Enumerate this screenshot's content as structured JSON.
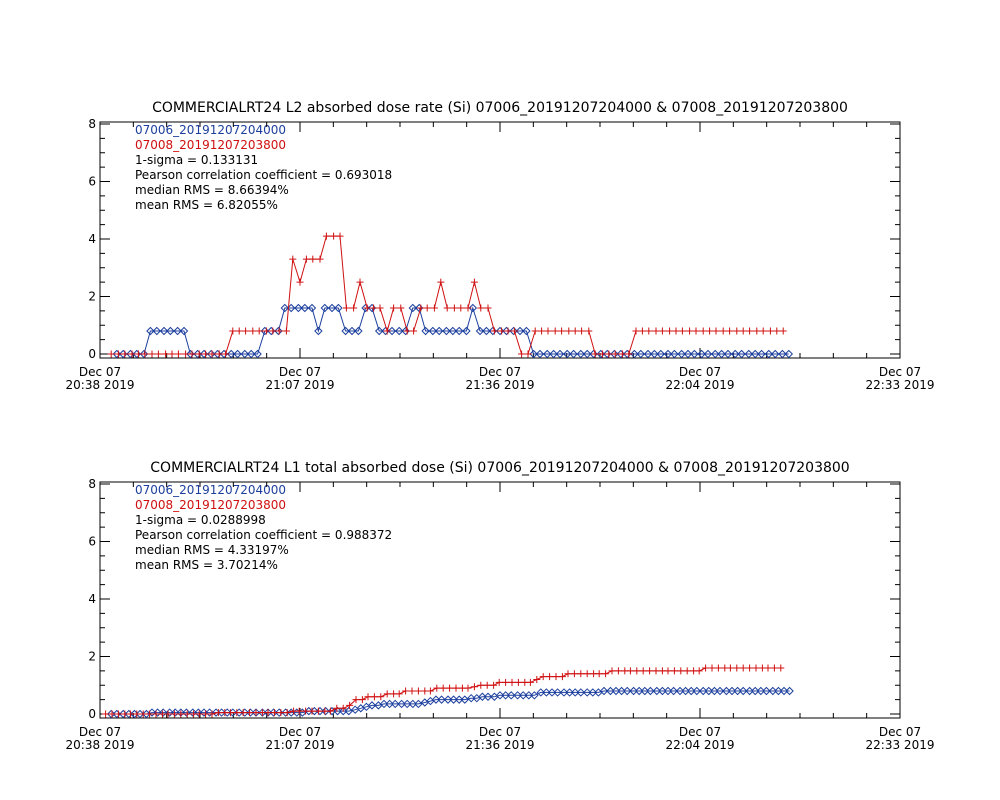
{
  "chart_data": [
    {
      "type": "line",
      "title": "COMMERCIALRT24 L2 absorbed dose rate (Si) 07006_20191207204000 & 07008_20191207203800",
      "ylim": [
        0,
        8
      ],
      "y_ticks": [
        "0",
        "2",
        "4",
        "6",
        "8"
      ],
      "x_ticks": [
        {
          "date": "Dec 07",
          "time": "20:38 2019"
        },
        {
          "date": "Dec 07",
          "time": "21:07 2019"
        },
        {
          "date": "Dec 07",
          "time": "21:36 2019"
        },
        {
          "date": "Dec 07",
          "time": "22:04 2019"
        },
        {
          "date": "Dec 07",
          "time": "22:33 2019"
        }
      ],
      "annotations": [
        "1-sigma = 0.133131",
        "Pearson correlation coefficient = 0.693018",
        "median RMS = 8.66394%",
        "mean RMS = 6.82055%"
      ],
      "series": [
        {
          "name": "07006_20191207204000",
          "color": "#1c3f9e",
          "marker": "diamond",
          "x": [
            0.021,
            0.029,
            0.038,
            0.046,
            0.055,
            0.063,
            0.071,
            0.08,
            0.088,
            0.097,
            0.105,
            0.113,
            0.122,
            0.13,
            0.139,
            0.147,
            0.155,
            0.164,
            0.172,
            0.181,
            0.189,
            0.197,
            0.206,
            0.214,
            0.223,
            0.231,
            0.239,
            0.248,
            0.256,
            0.265,
            0.273,
            0.281,
            0.29,
            0.298,
            0.307,
            0.315,
            0.323,
            0.332,
            0.34,
            0.349,
            0.357,
            0.365,
            0.374,
            0.382,
            0.391,
            0.399,
            0.407,
            0.416,
            0.424,
            0.433,
            0.441,
            0.449,
            0.458,
            0.466,
            0.475,
            0.483,
            0.491,
            0.5,
            0.508,
            0.517,
            0.525,
            0.533,
            0.542,
            0.55,
            0.559,
            0.567,
            0.575,
            0.584,
            0.592,
            0.601,
            0.609,
            0.617,
            0.626,
            0.634,
            0.643,
            0.651,
            0.659,
            0.668,
            0.676,
            0.685,
            0.693,
            0.701,
            0.71,
            0.718,
            0.727,
            0.735,
            0.743,
            0.752,
            0.76,
            0.769,
            0.777,
            0.785,
            0.794,
            0.802,
            0.811,
            0.819,
            0.827,
            0.836,
            0.844,
            0.853,
            0.861
          ],
          "y": [
            0,
            0,
            0,
            0,
            0,
            0.8,
            0.8,
            0.8,
            0.8,
            0.8,
            0.8,
            0,
            0,
            0,
            0,
            0,
            0,
            0,
            0,
            0,
            0,
            0,
            0.8,
            0.8,
            0.8,
            1.6,
            1.6,
            1.6,
            1.6,
            1.6,
            0.8,
            1.6,
            1.6,
            1.6,
            0.8,
            0.8,
            0.8,
            1.6,
            1.6,
            0.8,
            0.8,
            0.8,
            0.8,
            0.8,
            1.6,
            1.6,
            0.8,
            0.8,
            0.8,
            0.8,
            0.8,
            0.8,
            0.8,
            1.6,
            0.8,
            0.8,
            0.8,
            0.8,
            0.8,
            0.8,
            0.8,
            0.8,
            0,
            0,
            0,
            0,
            0,
            0,
            0,
            0,
            0,
            0,
            0,
            0,
            0,
            0,
            0,
            0,
            0,
            0,
            0,
            0,
            0,
            0,
            0,
            0,
            0,
            0,
            0,
            0,
            0,
            0,
            0,
            0,
            0,
            0,
            0,
            0,
            0,
            0,
            0
          ]
        },
        {
          "name": "07008_20191207203800",
          "color": "#d01010",
          "marker": "plus",
          "x": [
            0.014,
            0.023,
            0.031,
            0.04,
            0.048,
            0.056,
            0.065,
            0.073,
            0.082,
            0.09,
            0.098,
            0.107,
            0.115,
            0.124,
            0.132,
            0.14,
            0.149,
            0.157,
            0.166,
            0.174,
            0.182,
            0.191,
            0.199,
            0.208,
            0.216,
            0.224,
            0.233,
            0.241,
            0.25,
            0.258,
            0.266,
            0.275,
            0.283,
            0.292,
            0.3,
            0.308,
            0.317,
            0.325,
            0.334,
            0.342,
            0.35,
            0.359,
            0.367,
            0.376,
            0.384,
            0.392,
            0.401,
            0.409,
            0.418,
            0.426,
            0.434,
            0.443,
            0.451,
            0.46,
            0.468,
            0.476,
            0.485,
            0.493,
            0.502,
            0.51,
            0.518,
            0.527,
            0.535,
            0.544,
            0.552,
            0.56,
            0.569,
            0.577,
            0.586,
            0.594,
            0.602,
            0.611,
            0.619,
            0.628,
            0.636,
            0.644,
            0.653,
            0.661,
            0.67,
            0.678,
            0.686,
            0.695,
            0.703,
            0.712,
            0.72,
            0.728,
            0.737,
            0.745,
            0.754,
            0.762,
            0.77,
            0.779,
            0.787,
            0.796,
            0.804,
            0.812,
            0.821,
            0.829,
            0.838,
            0.846,
            0.854
          ],
          "y": [
            0,
            0,
            0,
            0,
            0,
            0,
            0,
            0,
            0,
            0,
            0,
            0,
            0,
            0,
            0,
            0,
            0,
            0,
            0.8,
            0.8,
            0.8,
            0.8,
            0.8,
            0.8,
            0.8,
            0.8,
            0.8,
            3.3,
            2.5,
            3.3,
            3.3,
            3.3,
            4.1,
            4.1,
            4.1,
            1.6,
            1.6,
            2.5,
            1.6,
            1.6,
            1.6,
            0.8,
            1.6,
            1.6,
            0.8,
            0.8,
            1.6,
            1.6,
            1.6,
            2.5,
            1.6,
            1.6,
            1.6,
            1.6,
            2.5,
            1.6,
            1.6,
            0.8,
            0.8,
            0.8,
            0.8,
            0,
            0,
            0.8,
            0.8,
            0.8,
            0.8,
            0.8,
            0.8,
            0.8,
            0.8,
            0.8,
            0,
            0,
            0,
            0,
            0,
            0,
            0.8,
            0.8,
            0.8,
            0.8,
            0.8,
            0.8,
            0.8,
            0.8,
            0.8,
            0.8,
            0.8,
            0.8,
            0.8,
            0.8,
            0.8,
            0.8,
            0.8,
            0.8,
            0.8,
            0.8,
            0.8,
            0.8,
            0.8
          ]
        }
      ]
    },
    {
      "type": "line",
      "title": "COMMERCIALRT24 L1 total absorbed dose (Si) 07006_20191207204000 & 07008_20191207203800",
      "ylim": [
        0,
        8
      ],
      "y_ticks": [
        "0",
        "2",
        "4",
        "6",
        "8"
      ],
      "x_ticks": [
        {
          "date": "Dec 07",
          "time": "20:38 2019"
        },
        {
          "date": "Dec 07",
          "time": "21:07 2019"
        },
        {
          "date": "Dec 07",
          "time": "21:36 2019"
        },
        {
          "date": "Dec 07",
          "time": "22:04 2019"
        },
        {
          "date": "Dec 07",
          "time": "22:33 2019"
        }
      ],
      "annotations": [
        "1-sigma = 0.0288998",
        "Pearson correlation coefficient = 0.988372",
        "median RMS = 4.33197%",
        "mean RMS = 3.70214%"
      ],
      "series": [
        {
          "name": "07006_20191207204000",
          "color": "#1c3f9e",
          "marker": "diamond",
          "x": [
            0.014,
            0.021,
            0.029,
            0.036,
            0.043,
            0.05,
            0.058,
            0.065,
            0.072,
            0.079,
            0.087,
            0.094,
            0.101,
            0.108,
            0.116,
            0.123,
            0.13,
            0.137,
            0.145,
            0.152,
            0.159,
            0.166,
            0.174,
            0.181,
            0.188,
            0.195,
            0.203,
            0.21,
            0.217,
            0.224,
            0.232,
            0.239,
            0.246,
            0.253,
            0.261,
            0.268,
            0.275,
            0.282,
            0.29,
            0.297,
            0.304,
            0.311,
            0.319,
            0.326,
            0.333,
            0.34,
            0.348,
            0.355,
            0.362,
            0.369,
            0.377,
            0.384,
            0.391,
            0.398,
            0.406,
            0.413,
            0.42,
            0.427,
            0.435,
            0.442,
            0.449,
            0.456,
            0.464,
            0.471,
            0.478,
            0.485,
            0.493,
            0.5,
            0.507,
            0.514,
            0.522,
            0.529,
            0.536,
            0.543,
            0.551,
            0.558,
            0.565,
            0.572,
            0.58,
            0.587,
            0.594,
            0.601,
            0.609,
            0.616,
            0.623,
            0.63,
            0.638,
            0.645,
            0.652,
            0.659,
            0.667,
            0.674,
            0.681,
            0.688,
            0.696,
            0.703,
            0.71,
            0.717,
            0.725,
            0.732,
            0.739,
            0.746,
            0.754,
            0.761,
            0.768,
            0.775,
            0.783,
            0.79,
            0.797,
            0.804,
            0.812,
            0.819,
            0.826,
            0.833,
            0.841,
            0.848,
            0.855,
            0.862
          ],
          "y": [
            0,
            0,
            0,
            0,
            0,
            0,
            0,
            0.05,
            0.05,
            0.05,
            0.05,
            0.05,
            0.05,
            0.05,
            0.05,
            0.05,
            0.05,
            0.05,
            0.05,
            0.05,
            0.05,
            0.05,
            0.05,
            0.05,
            0.05,
            0.05,
            0.05,
            0.05,
            0.05,
            0.05,
            0.05,
            0.05,
            0.05,
            0.05,
            0.1,
            0.1,
            0.1,
            0.1,
            0.1,
            0.1,
            0.1,
            0.1,
            0.15,
            0.2,
            0.25,
            0.3,
            0.3,
            0.35,
            0.35,
            0.35,
            0.35,
            0.35,
            0.35,
            0.35,
            0.4,
            0.45,
            0.5,
            0.5,
            0.5,
            0.5,
            0.5,
            0.5,
            0.55,
            0.55,
            0.6,
            0.6,
            0.6,
            0.65,
            0.65,
            0.65,
            0.65,
            0.65,
            0.65,
            0.65,
            0.75,
            0.75,
            0.75,
            0.75,
            0.75,
            0.75,
            0.75,
            0.75,
            0.75,
            0.75,
            0.75,
            0.8,
            0.8,
            0.8,
            0.8,
            0.8,
            0.8,
            0.8,
            0.8,
            0.8,
            0.8,
            0.8,
            0.8,
            0.8,
            0.8,
            0.8,
            0.8,
            0.8,
            0.8,
            0.8,
            0.8,
            0.8,
            0.8,
            0.8,
            0.8,
            0.8,
            0.8,
            0.8,
            0.8,
            0.8,
            0.8,
            0.8,
            0.8,
            0.8
          ]
        },
        {
          "name": "07008_20191207203800",
          "color": "#d01010",
          "marker": "plus",
          "x": [
            0.007,
            0.015,
            0.023,
            0.031,
            0.038,
            0.046,
            0.054,
            0.062,
            0.07,
            0.078,
            0.085,
            0.093,
            0.101,
            0.109,
            0.117,
            0.124,
            0.132,
            0.14,
            0.148,
            0.156,
            0.163,
            0.171,
            0.179,
            0.187,
            0.195,
            0.203,
            0.21,
            0.218,
            0.226,
            0.234,
            0.242,
            0.249,
            0.257,
            0.265,
            0.273,
            0.281,
            0.288,
            0.296,
            0.304,
            0.312,
            0.32,
            0.328,
            0.335,
            0.343,
            0.351,
            0.359,
            0.367,
            0.374,
            0.382,
            0.39,
            0.398,
            0.406,
            0.413,
            0.421,
            0.429,
            0.437,
            0.445,
            0.453,
            0.46,
            0.468,
            0.476,
            0.484,
            0.492,
            0.499,
            0.507,
            0.515,
            0.523,
            0.531,
            0.538,
            0.546,
            0.554,
            0.562,
            0.57,
            0.578,
            0.585,
            0.593,
            0.601,
            0.609,
            0.617,
            0.624,
            0.632,
            0.64,
            0.648,
            0.656,
            0.663,
            0.671,
            0.679,
            0.687,
            0.695,
            0.703,
            0.71,
            0.718,
            0.726,
            0.734,
            0.742,
            0.749,
            0.757,
            0.765,
            0.773,
            0.781,
            0.788,
            0.796,
            0.804,
            0.812,
            0.82,
            0.828,
            0.835,
            0.843,
            0.851
          ],
          "y": [
            0,
            0,
            0,
            0,
            0,
            0,
            0,
            0,
            0,
            0,
            0,
            0,
            0,
            0,
            0,
            0,
            0,
            0,
            0.05,
            0.05,
            0.05,
            0.05,
            0.05,
            0.05,
            0.05,
            0.05,
            0.05,
            0.05,
            0.05,
            0.05,
            0.1,
            0.1,
            0.1,
            0.1,
            0.1,
            0.1,
            0.1,
            0.2,
            0.2,
            0.3,
            0.5,
            0.5,
            0.6,
            0.6,
            0.6,
            0.7,
            0.7,
            0.7,
            0.8,
            0.8,
            0.8,
            0.8,
            0.8,
            0.9,
            0.9,
            0.9,
            0.9,
            0.9,
            0.9,
            0.95,
            1.0,
            1.0,
            1.0,
            1.1,
            1.1,
            1.1,
            1.1,
            1.1,
            1.1,
            1.2,
            1.3,
            1.3,
            1.3,
            1.3,
            1.4,
            1.4,
            1.4,
            1.4,
            1.4,
            1.4,
            1.4,
            1.5,
            1.5,
            1.5,
            1.5,
            1.5,
            1.5,
            1.5,
            1.5,
            1.5,
            1.5,
            1.5,
            1.5,
            1.5,
            1.5,
            1.5,
            1.6,
            1.6,
            1.6,
            1.6,
            1.6,
            1.6,
            1.6,
            1.6,
            1.6,
            1.6,
            1.6,
            1.6,
            1.6
          ]
        }
      ]
    }
  ]
}
